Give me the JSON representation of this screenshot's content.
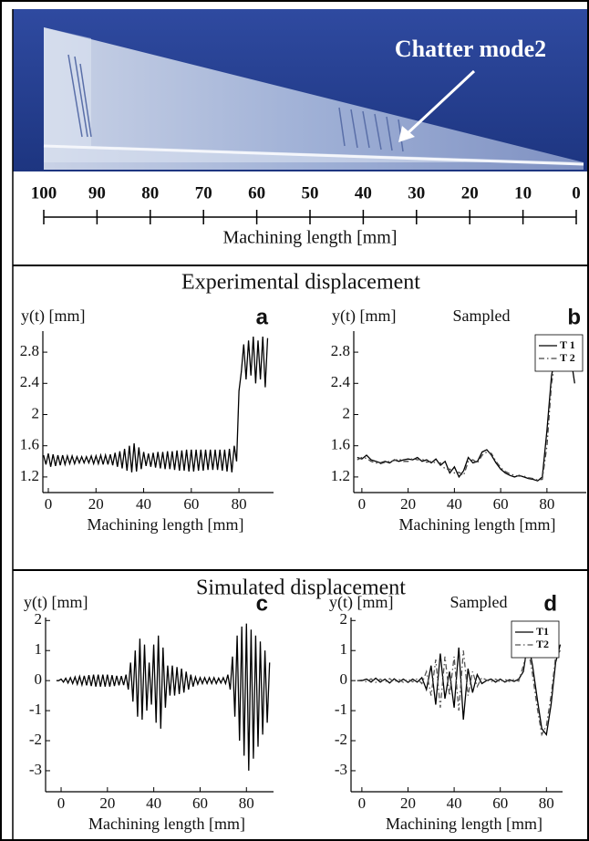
{
  "photo": {
    "annotation": "Chatter mode2"
  },
  "ruler": {
    "xlim": [
      100,
      0
    ],
    "ticks": [
      100,
      90,
      80,
      70,
      60,
      50,
      40,
      30,
      20,
      10,
      0
    ],
    "label": "Machining length [mm]"
  },
  "sections": [
    "Experimental displacement",
    "Simulated displacement"
  ],
  "chart_data": [
    {
      "type": "line",
      "panel": "a",
      "ylabel": "y(t) [mm]",
      "xlabel": "Machining length [mm]",
      "xlim": [
        -2.3,
        94.5
      ],
      "ylim": [
        1.0,
        3.07
      ],
      "xticks": [
        0,
        20,
        40,
        60,
        80
      ],
      "yticks": [
        1.2,
        1.6,
        2,
        2.4,
        2.8
      ],
      "color": "#000000",
      "x": [
        -2,
        -1,
        0,
        1,
        2,
        3,
        4,
        5,
        6,
        7,
        8,
        9,
        10,
        11,
        12,
        13,
        14,
        15,
        16,
        17,
        18,
        19,
        20,
        21,
        22,
        23,
        24,
        25,
        26,
        27,
        28,
        29,
        30,
        31,
        32,
        33,
        34,
        35,
        36,
        37,
        38,
        39,
        40,
        41,
        42,
        43,
        44,
        45,
        46,
        47,
        48,
        49,
        50,
        51,
        52,
        53,
        54,
        55,
        56,
        57,
        58,
        59,
        60,
        61,
        62,
        63,
        64,
        65,
        66,
        67,
        68,
        69,
        70,
        71,
        72,
        73,
        74,
        75,
        76,
        77,
        78,
        79,
        80,
        81,
        82,
        83,
        84,
        85,
        86,
        87,
        88,
        89,
        90,
        91,
        92
      ],
      "values": [
        1.48,
        1.36,
        1.5,
        1.33,
        1.49,
        1.34,
        1.48,
        1.35,
        1.48,
        1.36,
        1.47,
        1.37,
        1.47,
        1.37,
        1.46,
        1.38,
        1.46,
        1.38,
        1.46,
        1.38,
        1.47,
        1.37,
        1.47,
        1.37,
        1.48,
        1.36,
        1.48,
        1.36,
        1.49,
        1.35,
        1.51,
        1.33,
        1.53,
        1.31,
        1.56,
        1.28,
        1.6,
        1.26,
        1.63,
        1.27,
        1.58,
        1.3,
        1.52,
        1.34,
        1.5,
        1.33,
        1.51,
        1.32,
        1.52,
        1.31,
        1.52,
        1.3,
        1.53,
        1.3,
        1.53,
        1.29,
        1.54,
        1.28,
        1.54,
        1.28,
        1.55,
        1.27,
        1.55,
        1.27,
        1.55,
        1.28,
        1.55,
        1.28,
        1.55,
        1.29,
        1.55,
        1.29,
        1.55,
        1.29,
        1.55,
        1.28,
        1.55,
        1.27,
        1.56,
        1.26,
        1.6,
        1.4,
        2.3,
        2.55,
        2.9,
        2.45,
        2.95,
        2.5,
        3.0,
        2.4,
        2.95,
        2.45,
        3.0,
        2.35,
        2.98
      ]
    },
    {
      "type": "line",
      "panel": "b",
      "annotation": "Sampled",
      "ylabel": "y(t) [mm]",
      "xlabel": "Machining length [mm]",
      "xlim": [
        -3.5,
        97
      ],
      "ylim": [
        1.0,
        3.07
      ],
      "xticks": [
        0,
        20,
        40,
        60,
        80
      ],
      "yticks": [
        1.2,
        1.6,
        2,
        2.4,
        2.8
      ],
      "legend": "upper right",
      "x": [
        -2,
        0,
        2,
        4,
        6,
        8,
        10,
        12,
        14,
        16,
        18,
        20,
        22,
        24,
        26,
        28,
        30,
        32,
        34,
        36,
        38,
        40,
        42,
        44,
        46,
        48,
        50,
        52,
        54,
        56,
        58,
        60,
        62,
        64,
        66,
        68,
        70,
        72,
        74,
        76,
        78,
        80,
        82,
        84,
        86,
        88,
        90,
        92
      ],
      "series": [
        {
          "name": "T 1",
          "color": "#000000",
          "linestyle": "solid",
          "values": [
            1.45,
            1.43,
            1.48,
            1.42,
            1.4,
            1.38,
            1.4,
            1.38,
            1.42,
            1.4,
            1.42,
            1.43,
            1.42,
            1.45,
            1.4,
            1.42,
            1.38,
            1.43,
            1.35,
            1.4,
            1.25,
            1.33,
            1.2,
            1.28,
            1.45,
            1.38,
            1.4,
            1.52,
            1.55,
            1.48,
            1.38,
            1.3,
            1.25,
            1.22,
            1.2,
            1.22,
            1.2,
            1.18,
            1.17,
            1.15,
            1.2,
            1.8,
            2.5,
            2.8,
            2.7,
            2.9,
            2.8,
            2.4
          ]
        },
        {
          "name": "T 2",
          "color": "#444444",
          "linestyle": "dashdot",
          "values": [
            1.42,
            1.45,
            1.44,
            1.4,
            1.38,
            1.37,
            1.39,
            1.4,
            1.41,
            1.43,
            1.4,
            1.4,
            1.44,
            1.42,
            1.43,
            1.39,
            1.4,
            1.38,
            1.38,
            1.3,
            1.3,
            1.25,
            1.26,
            1.22,
            1.4,
            1.42,
            1.38,
            1.48,
            1.52,
            1.5,
            1.4,
            1.32,
            1.27,
            1.24,
            1.22,
            1.21,
            1.21,
            1.19,
            1.18,
            1.16,
            1.17,
            1.6,
            2.4,
            2.75,
            2.85,
            2.7,
            2.85,
            2.55
          ]
        }
      ]
    },
    {
      "type": "line",
      "panel": "c",
      "ylabel": "y(t) [mm]",
      "xlabel": "Machining length [mm]",
      "xlim": [
        -6.7,
        91.7
      ],
      "ylim": [
        -3.7,
        2.1
      ],
      "xticks": [
        0,
        20,
        40,
        60,
        80
      ],
      "yticks": [
        -3,
        -2,
        -1,
        0,
        1,
        2
      ],
      "color": "#000000",
      "x": [
        -2,
        -1,
        0,
        1,
        2,
        3,
        4,
        5,
        6,
        7,
        8,
        9,
        10,
        11,
        12,
        13,
        14,
        15,
        16,
        17,
        18,
        19,
        20,
        21,
        22,
        23,
        24,
        25,
        26,
        27,
        28,
        29,
        30,
        31,
        32,
        33,
        34,
        35,
        36,
        37,
        38,
        39,
        40,
        41,
        42,
        43,
        44,
        45,
        46,
        47,
        48,
        49,
        50,
        51,
        52,
        53,
        54,
        55,
        56,
        57,
        58,
        59,
        60,
        61,
        62,
        63,
        64,
        65,
        66,
        67,
        68,
        69,
        70,
        71,
        72,
        73,
        74,
        75,
        76,
        77,
        78,
        79,
        80,
        81,
        82,
        83,
        84,
        85,
        86,
        87,
        88,
        89,
        90
      ],
      "values": [
        0,
        0,
        0.05,
        -0.05,
        0.08,
        -0.08,
        0.1,
        -0.1,
        0.12,
        -0.12,
        0.14,
        -0.14,
        0.16,
        -0.16,
        0.18,
        -0.18,
        0.2,
        -0.2,
        0.2,
        -0.2,
        0.2,
        -0.2,
        0.2,
        -0.2,
        0.18,
        -0.18,
        0.16,
        -0.16,
        0.15,
        -0.15,
        0.2,
        -0.3,
        0.6,
        -0.7,
        1.0,
        -1.2,
        1.4,
        -1.3,
        1.2,
        -1.0,
        0.6,
        -0.8,
        1.2,
        -1.4,
        1.5,
        -1.6,
        1.1,
        -0.9,
        0.5,
        -0.5,
        0.5,
        -0.5,
        0.45,
        -0.45,
        0.4,
        -0.4,
        0.3,
        -0.3,
        0.2,
        -0.2,
        0.12,
        -0.12,
        0.1,
        -0.1,
        0.1,
        -0.1,
        0.1,
        -0.1,
        0.1,
        -0.1,
        0.08,
        -0.08,
        0.1,
        -0.1,
        0.2,
        -0.3,
        0.8,
        -1.2,
        1.5,
        -2.0,
        1.8,
        -2.5,
        1.9,
        -3.0,
        1.7,
        -2.6,
        1.5,
        -2.2,
        1.3,
        -1.8,
        1.0,
        -1.4,
        0.6
      ]
    },
    {
      "type": "line",
      "panel": "d",
      "annotation": "Sampled",
      "ylabel": "y(t) [mm]",
      "xlabel": "Machining length [mm]",
      "xlim": [
        -4.7,
        87
      ],
      "ylim": [
        -3.7,
        2.1
      ],
      "xticks": [
        0,
        20,
        40,
        60,
        80
      ],
      "yticks": [
        -3,
        -2,
        -1,
        0,
        1,
        2
      ],
      "legend": "upper right",
      "x": [
        -2,
        0,
        2,
        4,
        6,
        8,
        10,
        12,
        14,
        16,
        18,
        20,
        22,
        24,
        26,
        28,
        30,
        32,
        34,
        36,
        38,
        40,
        42,
        44,
        46,
        48,
        50,
        52,
        54,
        56,
        58,
        60,
        62,
        64,
        66,
        68,
        70,
        72,
        74,
        76,
        78,
        80,
        82,
        84,
        86
      ],
      "series": [
        {
          "name": "T1",
          "color": "#000000",
          "linestyle": "solid",
          "values": [
            0,
            0,
            0.05,
            -0.05,
            0.08,
            -0.05,
            0.05,
            -0.08,
            0.06,
            -0.05,
            0.05,
            -0.06,
            0.05,
            -0.05,
            0.1,
            -0.3,
            0.5,
            -0.8,
            0.9,
            -0.6,
            0.3,
            -0.9,
            1.1,
            -1.3,
            0.4,
            -0.4,
            0.2,
            -0.1,
            0,
            0.05,
            -0.05,
            0.05,
            -0.05,
            0.03,
            -0.03,
            0.05,
            0.3,
            1.3,
            0.5,
            -0.6,
            -1.6,
            -1.8,
            -0.8,
            0.6,
            1.2
          ]
        },
        {
          "name": "T2",
          "color": "#555555",
          "linestyle": "dashdot",
          "values": [
            0,
            0.02,
            -0.04,
            0.06,
            -0.06,
            0.05,
            -0.05,
            0.07,
            -0.05,
            0.04,
            -0.06,
            0.05,
            -0.04,
            0.06,
            -0.1,
            0.3,
            -0.5,
            0.7,
            -0.9,
            0.8,
            -0.5,
            0.8,
            -1.0,
            1.0,
            -0.5,
            0.3,
            -0.2,
            0.1,
            0.02,
            -0.04,
            0.05,
            -0.05,
            0.04,
            -0.03,
            0.04,
            -0.02,
            0.5,
            1.1,
            0.2,
            -0.9,
            -1.8,
            -1.5,
            -0.5,
            0.8,
            1.0
          ]
        }
      ]
    }
  ]
}
